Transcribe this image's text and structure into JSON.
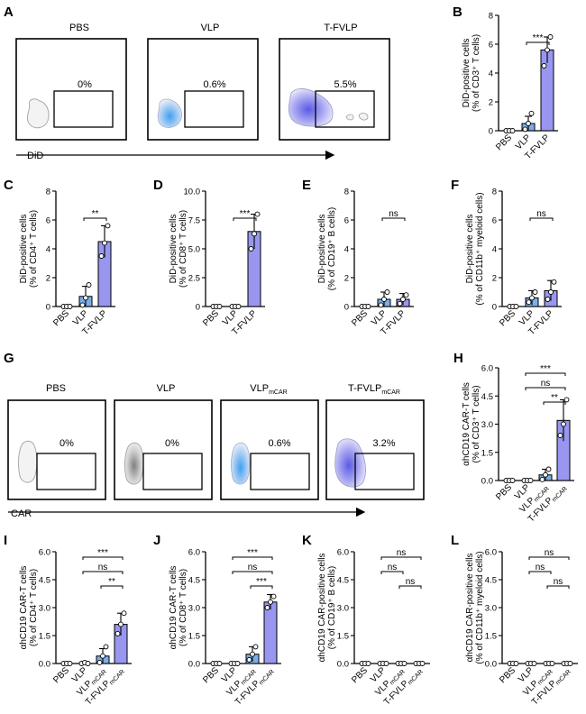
{
  "colors": {
    "bar": "#9896ee",
    "bar_light": "#7aaee8",
    "axis": "#000000",
    "point": "#ffffff"
  },
  "panel_labels": [
    "A",
    "B",
    "C",
    "D",
    "E",
    "F",
    "G",
    "H",
    "I",
    "J",
    "K",
    "L"
  ],
  "flow_A": {
    "axis_label": "DiD",
    "plots": [
      {
        "title": "PBS",
        "percent": "0%"
      },
      {
        "title": "VLP",
        "percent": "0.6%"
      },
      {
        "title": "T-FVLP",
        "percent": "5.5%"
      }
    ]
  },
  "flow_G": {
    "axis_label": "CAR",
    "plots": [
      {
        "title": "PBS",
        "percent": "0%"
      },
      {
        "title": "VLP",
        "percent": "0%"
      },
      {
        "title": "VLP",
        "title_sub": "mCAR",
        "percent": "0.6%"
      },
      {
        "title": "T-FVLP",
        "title_sub": "mCAR",
        "percent": "3.2%"
      }
    ]
  },
  "chart_data": [
    {
      "panel": "B",
      "type": "bar",
      "categories": [
        "PBS",
        "VLP",
        "T-FVLP"
      ],
      "ylabel": [
        "DiD-positive cells",
        "(% of CD3⁺ T cells)"
      ],
      "ylim": [
        0,
        8
      ],
      "yticks": [
        "0",
        "2",
        "4",
        "6",
        "8"
      ],
      "values": [
        0,
        0.5,
        5.6
      ],
      "errors": [
        0,
        0.5,
        0.9
      ],
      "points": [
        [
          0,
          0,
          0
        ],
        [
          0.1,
          0.5,
          1.2
        ],
        [
          4.5,
          5.6,
          6.5
        ]
      ],
      "significance": [
        {
          "from": 1,
          "to": 2,
          "label": "***"
        }
      ]
    },
    {
      "panel": "C",
      "type": "bar",
      "categories": [
        "PBS",
        "VLP",
        "T-FVLP"
      ],
      "ylabel": [
        "DiD-positive cells",
        "(% of CD4⁺ T cells)"
      ],
      "ylim": [
        0,
        8
      ],
      "yticks": [
        "0",
        "2",
        "4",
        "6",
        "8"
      ],
      "values": [
        0,
        0.7,
        4.5
      ],
      "errors": [
        0,
        0.7,
        1.1
      ],
      "points": [
        [
          0,
          0,
          0
        ],
        [
          0.1,
          0.6,
          1.5
        ],
        [
          3.5,
          4.4,
          5.6
        ]
      ],
      "significance": [
        {
          "from": 1,
          "to": 2,
          "label": "**"
        }
      ]
    },
    {
      "panel": "D",
      "type": "bar",
      "categories": [
        "PBS",
        "VLP",
        "T-FVLP"
      ],
      "ylabel": [
        "DiD-positive cells",
        "(% of CD8⁺ T cells)"
      ],
      "ylim": [
        0,
        10
      ],
      "yticks": [
        "0",
        "2.5",
        "5.0",
        "7.5",
        "10.0"
      ],
      "values": [
        0,
        0,
        6.5
      ],
      "errors": [
        0,
        0,
        1.5
      ],
      "points": [
        [
          0,
          0,
          0
        ],
        [
          0,
          0,
          0
        ],
        [
          5.0,
          6.3,
          8.0
        ]
      ],
      "significance": [
        {
          "from": 1,
          "to": 2,
          "label": "***"
        }
      ]
    },
    {
      "panel": "E",
      "type": "bar",
      "categories": [
        "PBS",
        "VLP",
        "T-FVLP"
      ],
      "ylabel": [
        "DiD-positive cells",
        "(% of CD19⁺ B cells)"
      ],
      "ylim": [
        0,
        8
      ],
      "yticks": [
        "0",
        "2",
        "4",
        "6",
        "8"
      ],
      "values": [
        0,
        0.5,
        0.5
      ],
      "errors": [
        0,
        0.5,
        0.4
      ],
      "points": [
        [
          0,
          0,
          0
        ],
        [
          0.1,
          0.5,
          1.0
        ],
        [
          0.2,
          0.5,
          0.8
        ]
      ],
      "significance": [
        {
          "from": 1,
          "to": 2,
          "label": "ns"
        }
      ]
    },
    {
      "panel": "F",
      "type": "bar",
      "categories": [
        "PBS",
        "VLP",
        "T-FVLP"
      ],
      "ylabel": [
        "DiD-positive cells",
        "(% of CD11b⁺ myeloid cells)"
      ],
      "ylim": [
        0,
        8
      ],
      "yticks": [
        "0",
        "2",
        "4",
        "6",
        "8"
      ],
      "values": [
        0,
        0.6,
        1.1
      ],
      "errors": [
        0,
        0.5,
        0.7
      ],
      "points": [
        [
          0,
          0,
          0
        ],
        [
          0.3,
          0.6,
          1.0
        ],
        [
          0.5,
          1.0,
          1.7
        ]
      ],
      "significance": [
        {
          "from": 1,
          "to": 2,
          "label": "ns"
        }
      ]
    },
    {
      "panel": "H",
      "type": "bar",
      "categories": [
        "PBS",
        "VLP",
        "VLPmCAR",
        "T-FVLPmCAR"
      ],
      "ylabel": [
        "αhCD19 CAR-T cells",
        "(% of CD3⁺ T cells)"
      ],
      "ylim": [
        0,
        6
      ],
      "yticks": [
        "0.0",
        "1.5",
        "3.0",
        "4.5",
        "6.0"
      ],
      "values": [
        0,
        0,
        0.3,
        3.2
      ],
      "errors": [
        0,
        0,
        0.3,
        1.1
      ],
      "points": [
        [
          0,
          0,
          0
        ],
        [
          0,
          0,
          0
        ],
        [
          0.05,
          0.3,
          0.6
        ],
        [
          2.4,
          3.0,
          4.3
        ]
      ],
      "significance": [
        {
          "from": 2,
          "to": 3,
          "label": "**"
        },
        {
          "from": 1,
          "to": 3,
          "label": "ns"
        },
        {
          "from": 1,
          "to": 3,
          "label": "***"
        }
      ]
    },
    {
      "panel": "I",
      "type": "bar",
      "categories": [
        "PBS",
        "VLP",
        "VLPmCAR",
        "T-FVLPmCAR"
      ],
      "ylabel": [
        "αhCD19 CAR-T cells",
        "(% of CD4⁺ T cells)"
      ],
      "ylim": [
        0,
        6
      ],
      "yticks": [
        "0.0",
        "1.5",
        "3.0",
        "4.5",
        "6.0"
      ],
      "values": [
        0,
        0,
        0.4,
        2.1
      ],
      "errors": [
        0,
        0,
        0.4,
        0.6
      ],
      "points": [
        [
          0,
          0,
          0
        ],
        [
          0,
          0.05,
          0
        ],
        [
          0.05,
          0.4,
          0.9
        ],
        [
          1.6,
          2.1,
          2.7
        ]
      ],
      "significance": [
        {
          "from": 2,
          "to": 3,
          "label": "**"
        },
        {
          "from": 1,
          "to": 3,
          "label": "ns"
        },
        {
          "from": 1,
          "to": 3,
          "label": "***"
        }
      ]
    },
    {
      "panel": "J",
      "type": "bar",
      "categories": [
        "PBS",
        "VLP",
        "VLPmCAR",
        "T-FVLPmCAR"
      ],
      "ylabel": [
        "αhCD19 CAR-T cells",
        "(% of CD8⁺ T cells)"
      ],
      "ylim": [
        0,
        6
      ],
      "yticks": [
        "0.0",
        "1.5",
        "3.0",
        "4.5",
        "6.0"
      ],
      "values": [
        0,
        0,
        0.5,
        3.3
      ],
      "errors": [
        0,
        0,
        0.4,
        0.4
      ],
      "points": [
        [
          0,
          0,
          0
        ],
        [
          0,
          0,
          0
        ],
        [
          0.2,
          0.5,
          0.9
        ],
        [
          3.0,
          3.3,
          3.6
        ]
      ],
      "significance": [
        {
          "from": 2,
          "to": 3,
          "label": "***"
        },
        {
          "from": 1,
          "to": 3,
          "label": "ns"
        },
        {
          "from": 1,
          "to": 3,
          "label": "***"
        }
      ]
    },
    {
      "panel": "K",
      "type": "bar",
      "categories": [
        "PBS",
        "VLP",
        "VLPmCAR",
        "T-FVLPmCAR"
      ],
      "ylabel": [
        "αhCD19 CAR-positive cells",
        "(% of CD19⁺ B cells)"
      ],
      "ylim": [
        0,
        6
      ],
      "yticks": [
        "0.0",
        "1.5",
        "3.0",
        "4.5",
        "6.0"
      ],
      "values": [
        0,
        0,
        0,
        0
      ],
      "errors": [
        0,
        0,
        0,
        0
      ],
      "points": [
        [
          0,
          0,
          0
        ],
        [
          0,
          0,
          0
        ],
        [
          0,
          0,
          0
        ],
        [
          0,
          0,
          0
        ]
      ],
      "significance": [
        {
          "from": 2,
          "to": 3,
          "label": "ns"
        },
        {
          "from": 1,
          "to": 2,
          "label": "ns"
        },
        {
          "from": 1,
          "to": 3,
          "label": "ns"
        }
      ]
    },
    {
      "panel": "L",
      "type": "bar",
      "categories": [
        "PBS",
        "VLP",
        "VLPmCAR",
        "T-FVLPmCAR"
      ],
      "ylabel": [
        "αhCD19 CAR-positive cells",
        "(% of CD11b⁺ myeloid cells)"
      ],
      "ylim": [
        0,
        6
      ],
      "yticks": [
        "0.0",
        "1.5",
        "3.0",
        "4.5",
        "6.0"
      ],
      "values": [
        0,
        0,
        0,
        0
      ],
      "errors": [
        0,
        0,
        0,
        0
      ],
      "points": [
        [
          0,
          0,
          0
        ],
        [
          0,
          0,
          0
        ],
        [
          0,
          0,
          0
        ],
        [
          0,
          0,
          0
        ]
      ],
      "significance": [
        {
          "from": 2,
          "to": 3,
          "label": "ns"
        },
        {
          "from": 1,
          "to": 2,
          "label": "ns"
        },
        {
          "from": 1,
          "to": 3,
          "label": "ns"
        }
      ]
    }
  ]
}
